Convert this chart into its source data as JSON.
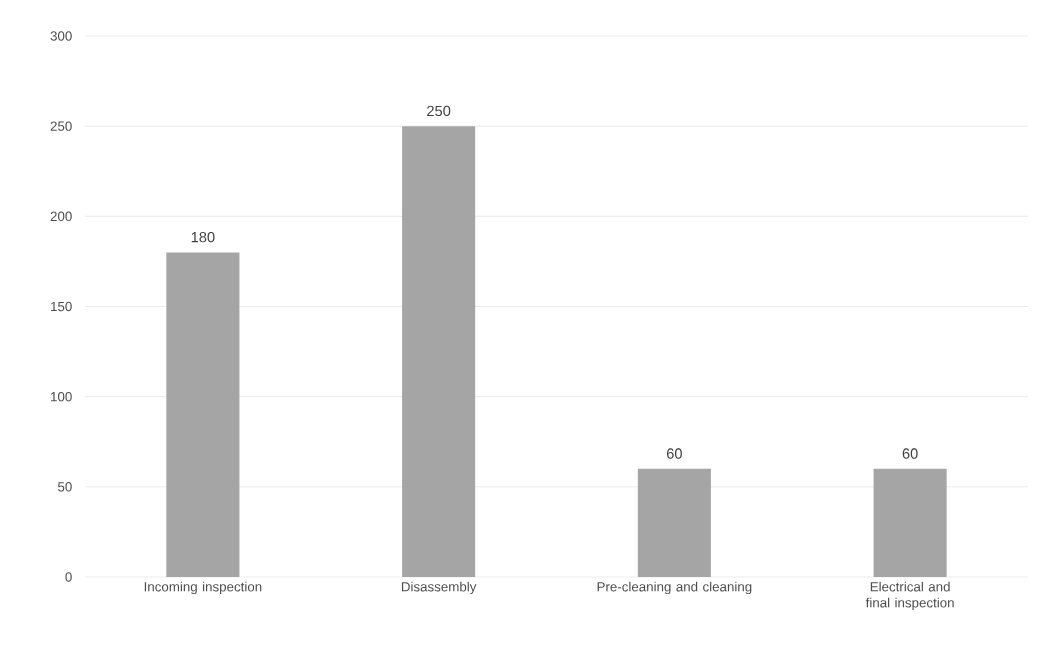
{
  "chart_data": {
    "type": "bar",
    "categories": [
      "Incoming inspection",
      "Disassembly",
      "Pre-cleaning and cleaning",
      "Electrical and final inspection"
    ],
    "values": [
      180,
      250,
      60,
      60
    ],
    "color": "#a5a5a5",
    "ylim": [
      0,
      300
    ],
    "yticks": [
      0,
      50,
      100,
      150,
      200,
      250,
      300
    ],
    "grid": "y",
    "data_labels": true
  }
}
